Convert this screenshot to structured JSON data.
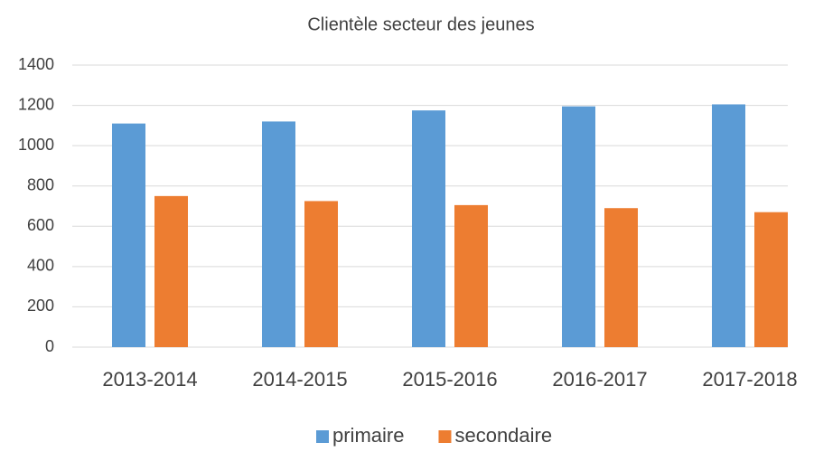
{
  "chart_data": {
    "type": "bar",
    "title": "Clientèle secteur des jeunes",
    "categories": [
      "2013-2014",
      "2014-2015",
      "2015-2016",
      "2016-2017",
      "2017-2018"
    ],
    "series": [
      {
        "name": "primaire",
        "color": "#5b9bd5",
        "values": [
          1110,
          1120,
          1175,
          1195,
          1205
        ]
      },
      {
        "name": "secondaire",
        "color": "#ed7d31",
        "values": [
          750,
          725,
          705,
          690,
          670
        ]
      }
    ],
    "ylim": [
      0,
      1400
    ],
    "yticks": [
      0,
      200,
      400,
      600,
      800,
      1000,
      1200,
      1400
    ],
    "grid": true,
    "legend": "bottom"
  }
}
